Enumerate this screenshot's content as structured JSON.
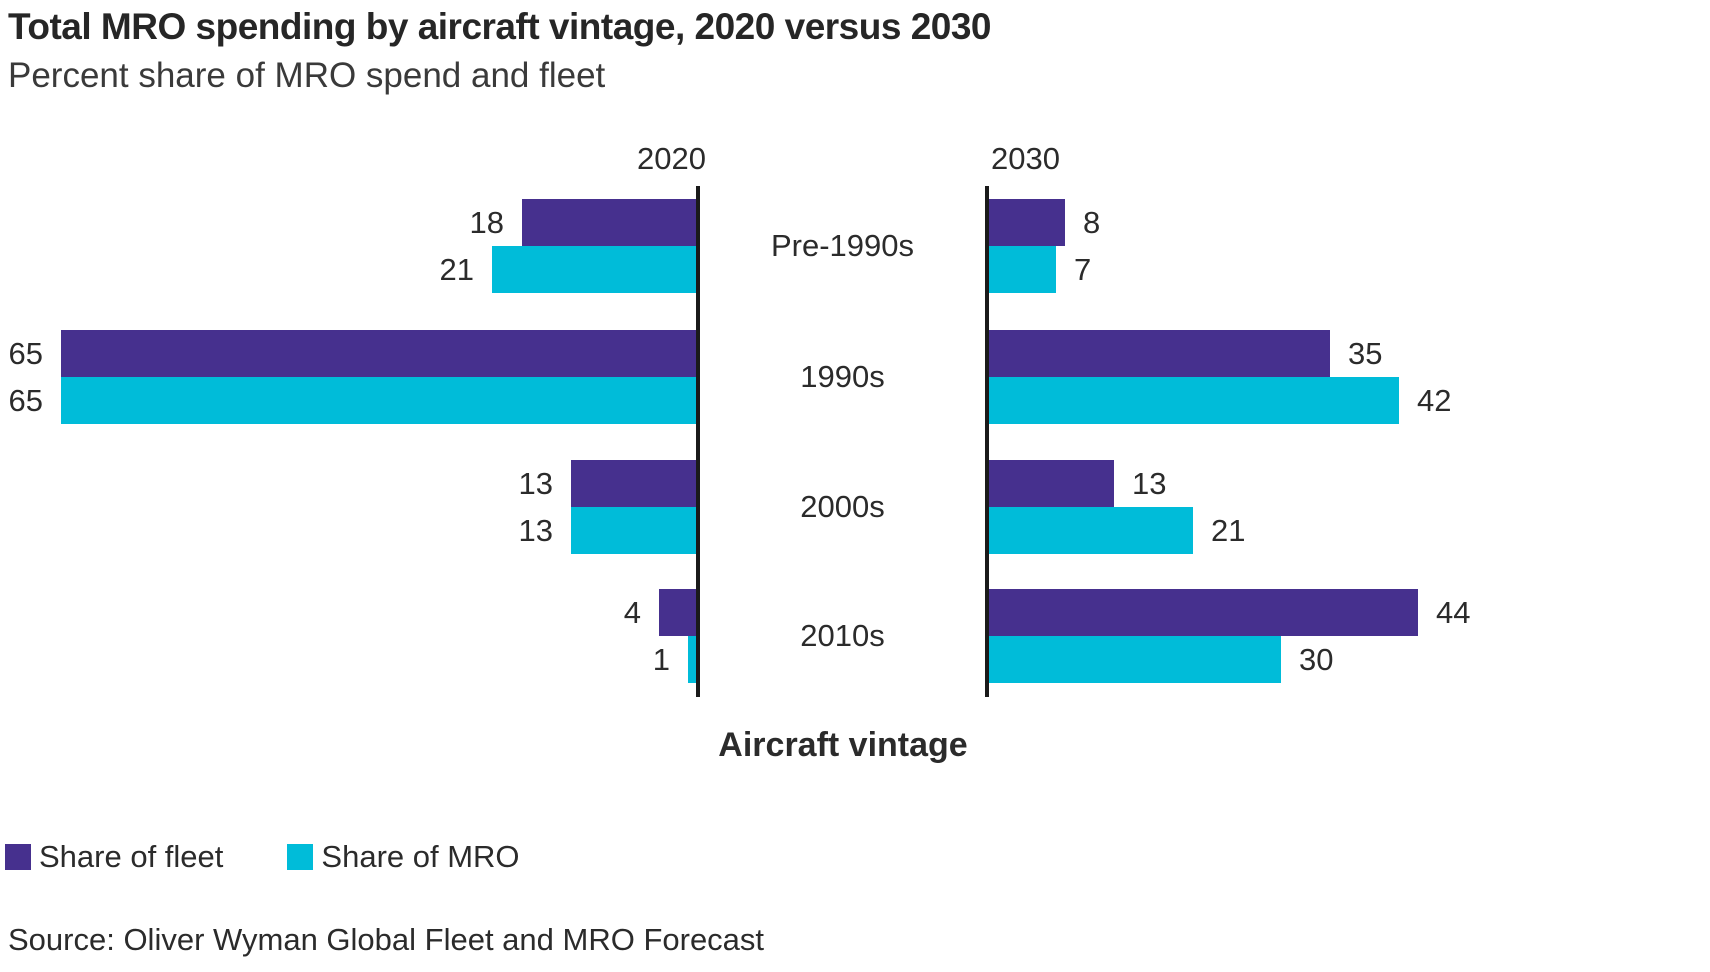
{
  "header": {
    "title": "Total MRO spending by aircraft vintage, 2020 versus 2030",
    "subtitle": "Percent share of MRO spend and fleet"
  },
  "chart_data": {
    "type": "bar",
    "variant": "back-to-back-horizontal",
    "title": "Total MRO spending by aircraft vintage, 2020 versus 2030",
    "subtitle": "Percent share of MRO spend and fleet",
    "center_axis_title": "Aircraft vintage",
    "value_unit": "percent",
    "xlim": [
      0,
      65
    ],
    "grid": false,
    "legend_position": "bottom-left",
    "categories": [
      "Pre-1990s",
      "1990s",
      "2000s",
      "2010s"
    ],
    "panels": [
      {
        "label": "2020",
        "direction": "left",
        "series": [
          {
            "name": "Share of fleet",
            "color": "#46308e",
            "values": [
              18,
              65,
              13,
              4
            ]
          },
          {
            "name": "Share of MRO",
            "color": "#00bcd9",
            "values": [
              21,
              65,
              13,
              1
            ]
          }
        ]
      },
      {
        "label": "2030",
        "direction": "right",
        "series": [
          {
            "name": "Share of fleet",
            "color": "#46308e",
            "values": [
              8,
              35,
              13,
              44
            ]
          },
          {
            "name": "Share of MRO",
            "color": "#00bcd9",
            "values": [
              7,
              42,
              21,
              30
            ]
          }
        ]
      }
    ],
    "legend": [
      {
        "label": "Share of fleet",
        "color": "#46308e"
      },
      {
        "label": "Share of MRO",
        "color": "#00bcd9"
      }
    ]
  },
  "footer": {
    "source": "Source: Oliver Wyman Global Fleet and MRO Forecast"
  },
  "colors": {
    "fleet": "#46308e",
    "mro": "#00bcd9",
    "axis": "#1a1a1a",
    "text": "#2b2b2b"
  }
}
